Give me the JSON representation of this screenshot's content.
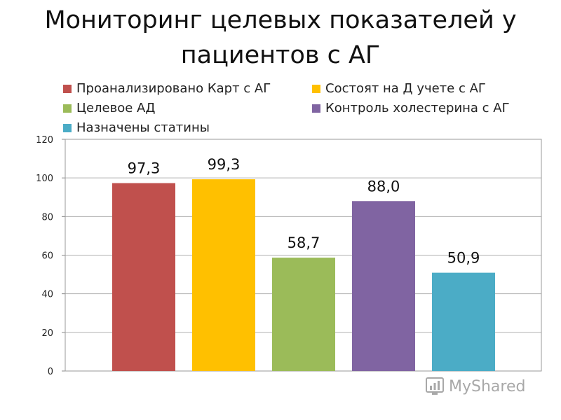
{
  "chart_data": {
    "type": "bar",
    "title": "Мониторинг целевых показателей у пациентов с АГ",
    "categories": [
      "Проанализировано Карт с АГ",
      "Состоят на Д учете с АГ",
      "Целевое АД",
      "Контроль холестерина с АГ",
      "Назначены статины"
    ],
    "values": [
      97.3,
      99.3,
      58.7,
      88.0,
      50.9
    ],
    "value_labels": [
      "97,3",
      "99,3",
      "58,7",
      "88,0",
      "50,9"
    ],
    "colors": [
      "#c0504d",
      "#ffc000",
      "#9bbb59",
      "#8064a2",
      "#4bacc6"
    ],
    "ylim": [
      0,
      120
    ],
    "yticks": [
      0,
      20,
      40,
      60,
      80,
      100,
      120
    ],
    "grid": true,
    "legend_position": "top"
  },
  "watermark": {
    "text": "MyShared",
    "icon": "myshared-logo-icon"
  }
}
